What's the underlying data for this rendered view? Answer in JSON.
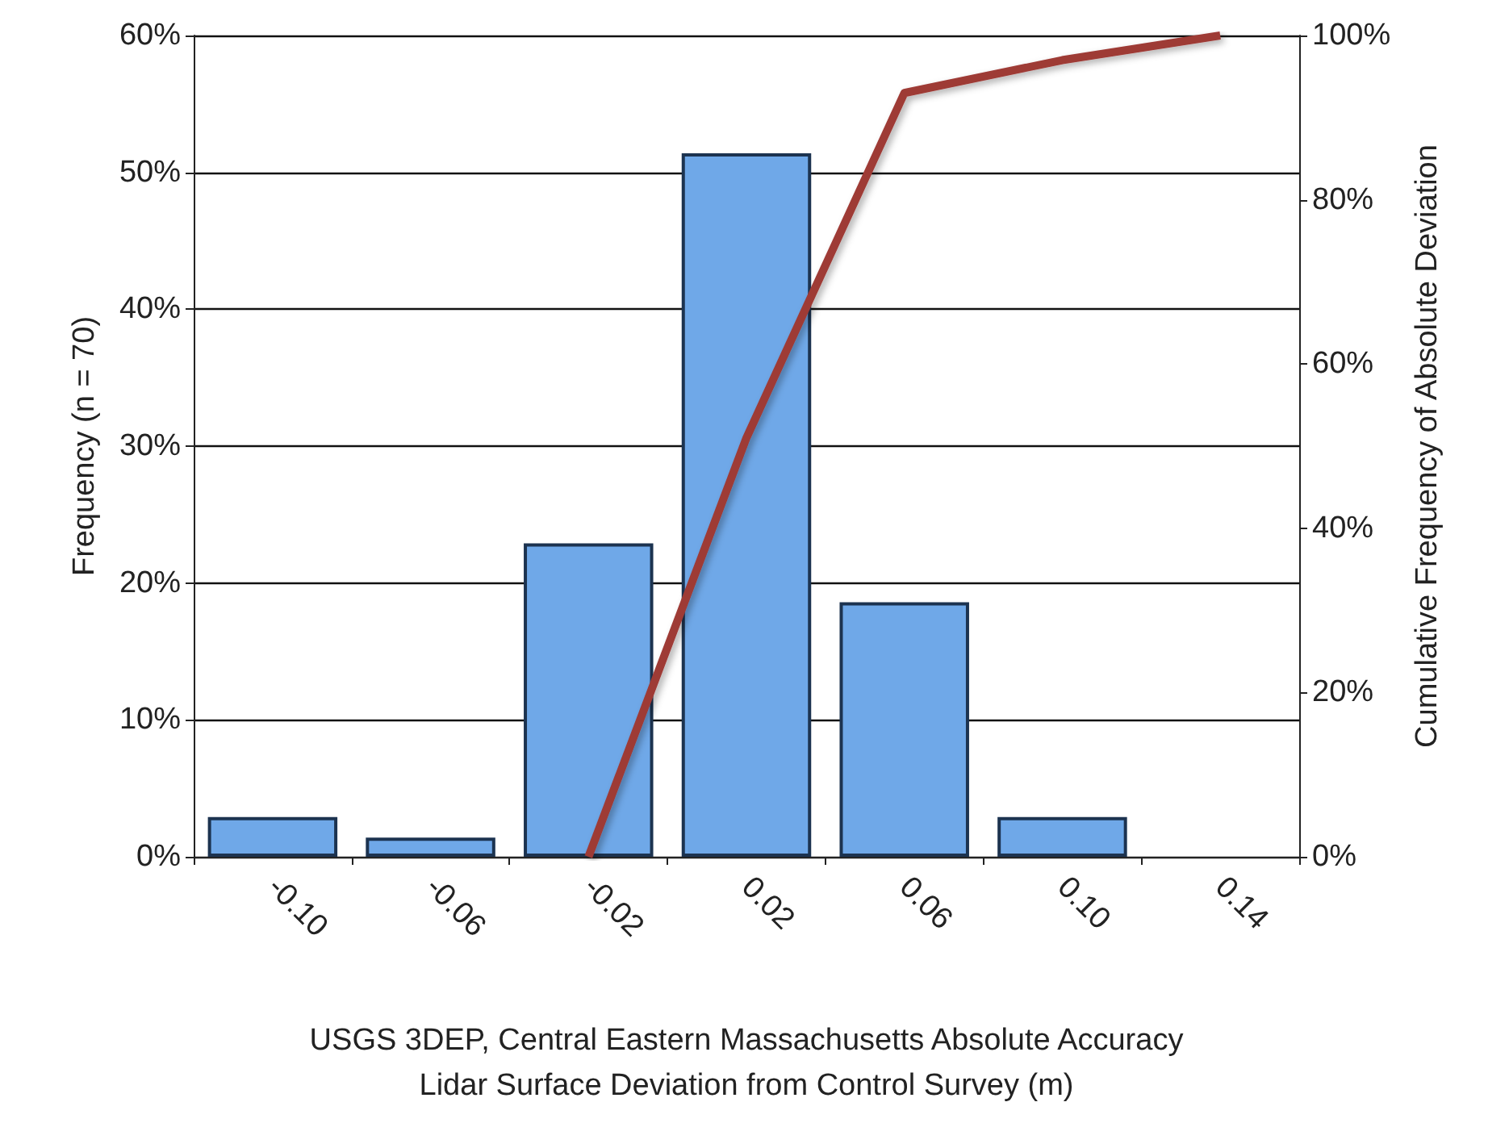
{
  "chart_data": {
    "type": "bar",
    "xlabel": "USGS 3DEP, Central Eastern Massachusetts Absolute Accuracy\nLidar Surface Deviation from Control Survey (m)",
    "ylabel": "Frequency (n = 70)",
    "y2label": "Cumulative Frequency of Absolute Deviation",
    "categories": [
      "-0.10",
      "-0.06",
      "-0.02",
      "0.02",
      "0.06",
      "0.10",
      "0.14"
    ],
    "series": [
      {
        "color": "#6fa8e8",
        "values": [
          2.9,
          1.4,
          22.9,
          51.4,
          18.6,
          2.9,
          0
        ]
      },
      {
        "type": "line",
        "axis": "y2",
        "color": "#9e3a36",
        "marker": "none",
        "values": [
          null,
          null,
          0,
          51,
          93,
          97,
          100
        ]
      }
    ],
    "ylim": [
      0,
      60
    ],
    "yticks": [
      {
        "value": 0,
        "label": "0%"
      },
      {
        "value": 10,
        "label": "10%"
      },
      {
        "value": 20,
        "label": "20%"
      },
      {
        "value": 30,
        "label": "30%"
      },
      {
        "value": 40,
        "label": "40%"
      },
      {
        "value": 50,
        "label": "50%"
      },
      {
        "value": 60,
        "label": "60%"
      }
    ],
    "y2lim": [
      0,
      100
    ],
    "y2ticks": [
      {
        "value": 0,
        "label": "0%"
      },
      {
        "value": 20,
        "label": "20%"
      },
      {
        "value": 40,
        "label": "40%"
      },
      {
        "value": 60,
        "label": "60%"
      },
      {
        "value": 80,
        "label": "80%"
      },
      {
        "value": 100,
        "label": "100%"
      }
    ],
    "grid": "y"
  }
}
